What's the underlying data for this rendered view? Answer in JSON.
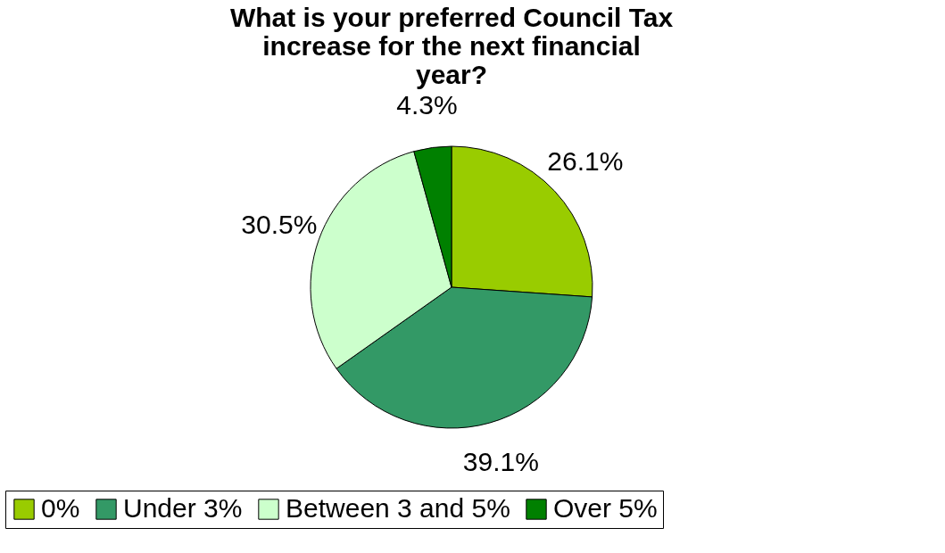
{
  "chart_data": {
    "type": "pie",
    "title": "What is your preferred Council Tax increase for the next financial year?",
    "categories": [
      "0%",
      "Under 3%",
      "Between 3 and 5%",
      "Over 5%"
    ],
    "values": [
      26.1,
      39.1,
      30.5,
      4.3
    ],
    "colors": [
      "#99cc00",
      "#339966",
      "#ccffcc",
      "#008000"
    ],
    "value_labels": [
      "26.1%",
      "39.1%",
      "30.5%",
      "4.3%"
    ],
    "legend": "bottom"
  }
}
